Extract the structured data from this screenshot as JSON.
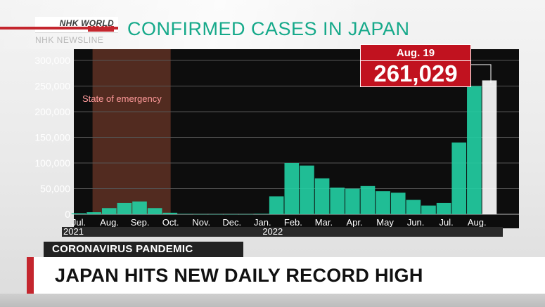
{
  "brand": {
    "name": "NHK WORLD",
    "sub": "JAPAN",
    "program": "NHK NEWSLINE"
  },
  "title": "CONFIRMED CASES IN JAPAN",
  "callout": {
    "date": "Aug. 19",
    "value": "261,029"
  },
  "lower_third": {
    "subject": "CORONAVIRUS PANDEMIC",
    "headline": "JAPAN HITS NEW DAILY RECORD HIGH"
  },
  "colors": {
    "bars": "#22d0a4",
    "accent": "#c4262e",
    "title": "#16a98a",
    "emergency": "#5a2f22"
  },
  "chart_data": {
    "type": "bar",
    "title": "CONFIRMED CASES IN JAPAN",
    "xlabel": "",
    "ylabel": "",
    "ylim": [
      0,
      300000
    ],
    "yticks": [
      0,
      50000,
      100000,
      150000,
      200000,
      250000,
      300000
    ],
    "ytick_labels": [
      "0",
      "50,000",
      "100,000",
      "150,000",
      "200,000",
      "250,000",
      "300,000"
    ],
    "xtick_labels": [
      "Jul.",
      "Aug.",
      "Sep.",
      "Oct.",
      "Nov.",
      "Dec.",
      "Jan.",
      "Feb.",
      "Mar.",
      "Apr.",
      "May",
      "Jun.",
      "Jul.",
      "Aug."
    ],
    "year_labels": [
      {
        "label": "2021",
        "month_index": 0
      },
      {
        "label": "2022",
        "month_index": 6
      }
    ],
    "grid": true,
    "annotation": {
      "label": "State of emergency",
      "from_month": 1,
      "to_month": 3
    },
    "highlight": {
      "label": "Aug. 19",
      "value": 261029
    },
    "series": [
      {
        "granularity": "semi-monthly (estimated peaks from bar heights)",
        "categories": [
          "Jul. 1",
          "Jul. 16",
          "Aug. 1",
          "Aug. 16",
          "Sep. 1",
          "Sep. 16",
          "Oct. 1",
          "Oct. 16",
          "Nov. 1",
          "Nov. 16",
          "Dec. 1",
          "Dec. 16",
          "Jan. 1",
          "Jan. 16",
          "Feb. 1",
          "Feb. 16",
          "Mar. 1",
          "Mar. 16",
          "Apr. 1",
          "Apr. 16",
          "May 1",
          "May 16",
          "Jun. 1",
          "Jun. 16",
          "Jul. 1",
          "Jul. 16",
          "Aug. 1",
          "Aug. 19"
        ],
        "values": [
          2000,
          4000,
          12000,
          22000,
          25000,
          12000,
          3000,
          800,
          300,
          200,
          200,
          300,
          1000,
          35000,
          100000,
          95000,
          70000,
          52000,
          50000,
          55000,
          45000,
          42000,
          28000,
          17000,
          22000,
          140000,
          250000,
          261029
        ]
      }
    ]
  }
}
